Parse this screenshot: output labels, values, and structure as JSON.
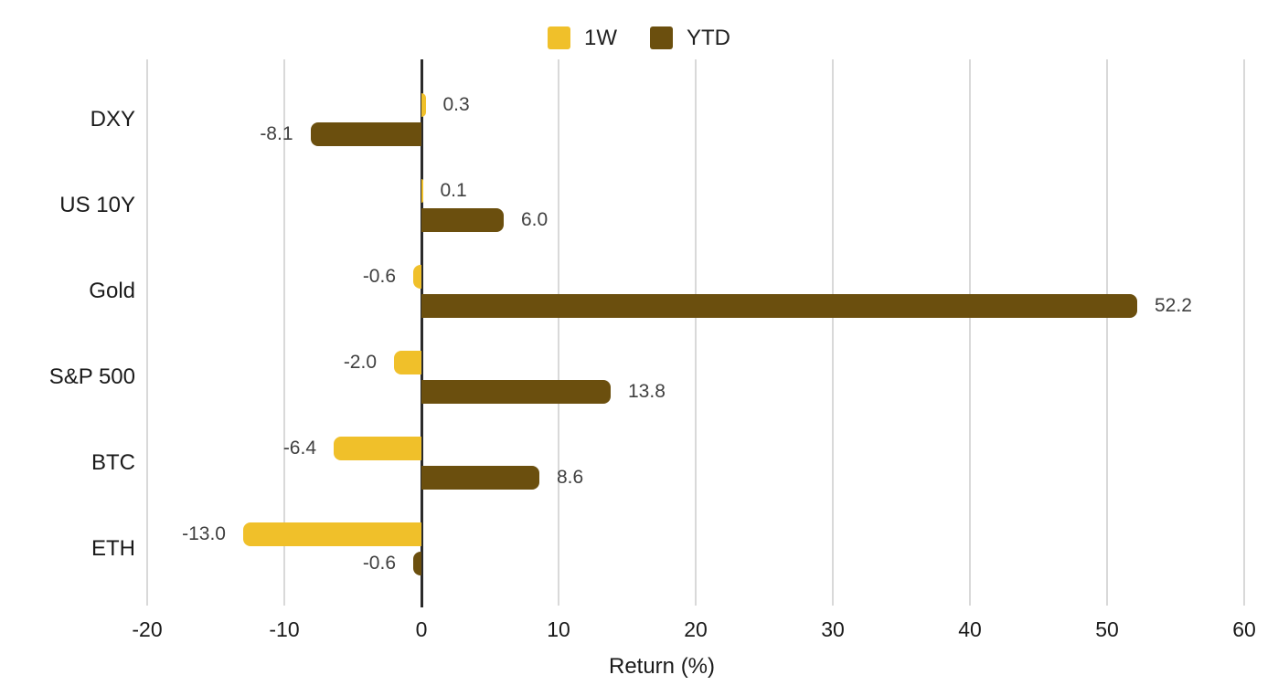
{
  "chart_data": {
    "type": "bar",
    "orientation": "horizontal",
    "title": "",
    "xlabel": "Return (%)",
    "ylabel": "",
    "xlim": [
      -20,
      60
    ],
    "xticks": [
      -20,
      -10,
      0,
      10,
      20,
      30,
      40,
      50,
      60
    ],
    "grid": true,
    "legend_position": "top",
    "categories": [
      "DXY",
      "US 10Y",
      "Gold",
      "S&P 500",
      "BTC",
      "ETH"
    ],
    "series": [
      {
        "name": "1W",
        "color": "#F0C02A",
        "values": [
          0.3,
          0.1,
          -0.6,
          -2.0,
          -6.4,
          -13.0
        ]
      },
      {
        "name": "YTD",
        "color": "#6B4F0E",
        "values": [
          -8.1,
          6.0,
          52.2,
          13.8,
          8.6,
          -0.6
        ]
      }
    ],
    "value_label_format": "one_decimal"
  },
  "colors": {
    "gridline": "#D9D9D9",
    "zero_axis": "#2B2B2B",
    "tick_text": "#1A1A1A",
    "value_label_text": "#404040",
    "background": "#FFFFFF"
  }
}
